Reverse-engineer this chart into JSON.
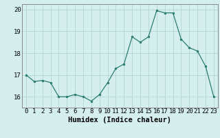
{
  "x": [
    0,
    1,
    2,
    3,
    4,
    5,
    6,
    7,
    8,
    9,
    10,
    11,
    12,
    13,
    14,
    15,
    16,
    17,
    18,
    19,
    20,
    21,
    22,
    23
  ],
  "y": [
    17.0,
    16.7,
    16.75,
    16.65,
    16.0,
    16.0,
    16.1,
    16.0,
    15.8,
    16.1,
    16.65,
    17.3,
    17.5,
    18.75,
    18.5,
    18.75,
    19.95,
    19.85,
    19.85,
    18.65,
    18.25,
    18.1,
    17.4,
    16.0
  ],
  "xlabel": "Humidex (Indice chaleur)",
  "ylim": [
    15.5,
    20.25
  ],
  "xlim": [
    -0.5,
    23.5
  ],
  "yticks": [
    16,
    17,
    18,
    19,
    20
  ],
  "xtick_labels": [
    "0",
    "1",
    "2",
    "3",
    "4",
    "5",
    "6",
    "7",
    "8",
    "9",
    "10",
    "11",
    "12",
    "13",
    "14",
    "15",
    "16",
    "17",
    "18",
    "19",
    "20",
    "21",
    "22",
    "23"
  ],
  "line_color": "#2a7d70",
  "marker_color": "#2a7d70",
  "bg_color": "#d5efee",
  "grid_color": "#b8d8d5",
  "spine_color": "#888888",
  "xlabel_fontsize": 7.5,
  "tick_fontsize": 6.5
}
